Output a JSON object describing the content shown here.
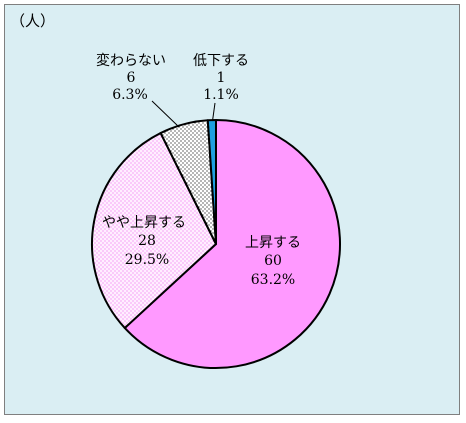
{
  "colors": {
    "panel_bg": "#DAEEF3",
    "panel_border": "#7F7F7F",
    "slice_stroke": "#000000"
  },
  "chart_data": {
    "type": "pie",
    "unit_label": "（人）",
    "slices": [
      {
        "label": "上昇する",
        "value": 60,
        "percent": "63.2%",
        "color": "#FF99FF"
      },
      {
        "label": "やや上昇する",
        "value": 28,
        "percent": "29.5%",
        "color": "#FFEEFF",
        "dot_color": "#F070F0"
      },
      {
        "label": "変わらない",
        "value": 6,
        "percent": "6.3%",
        "color": "#FFFFFF",
        "dot_color": "#000000"
      },
      {
        "label": "低下する",
        "value": 1,
        "percent": "1.1%",
        "color": "#1E9FE0"
      }
    ]
  }
}
